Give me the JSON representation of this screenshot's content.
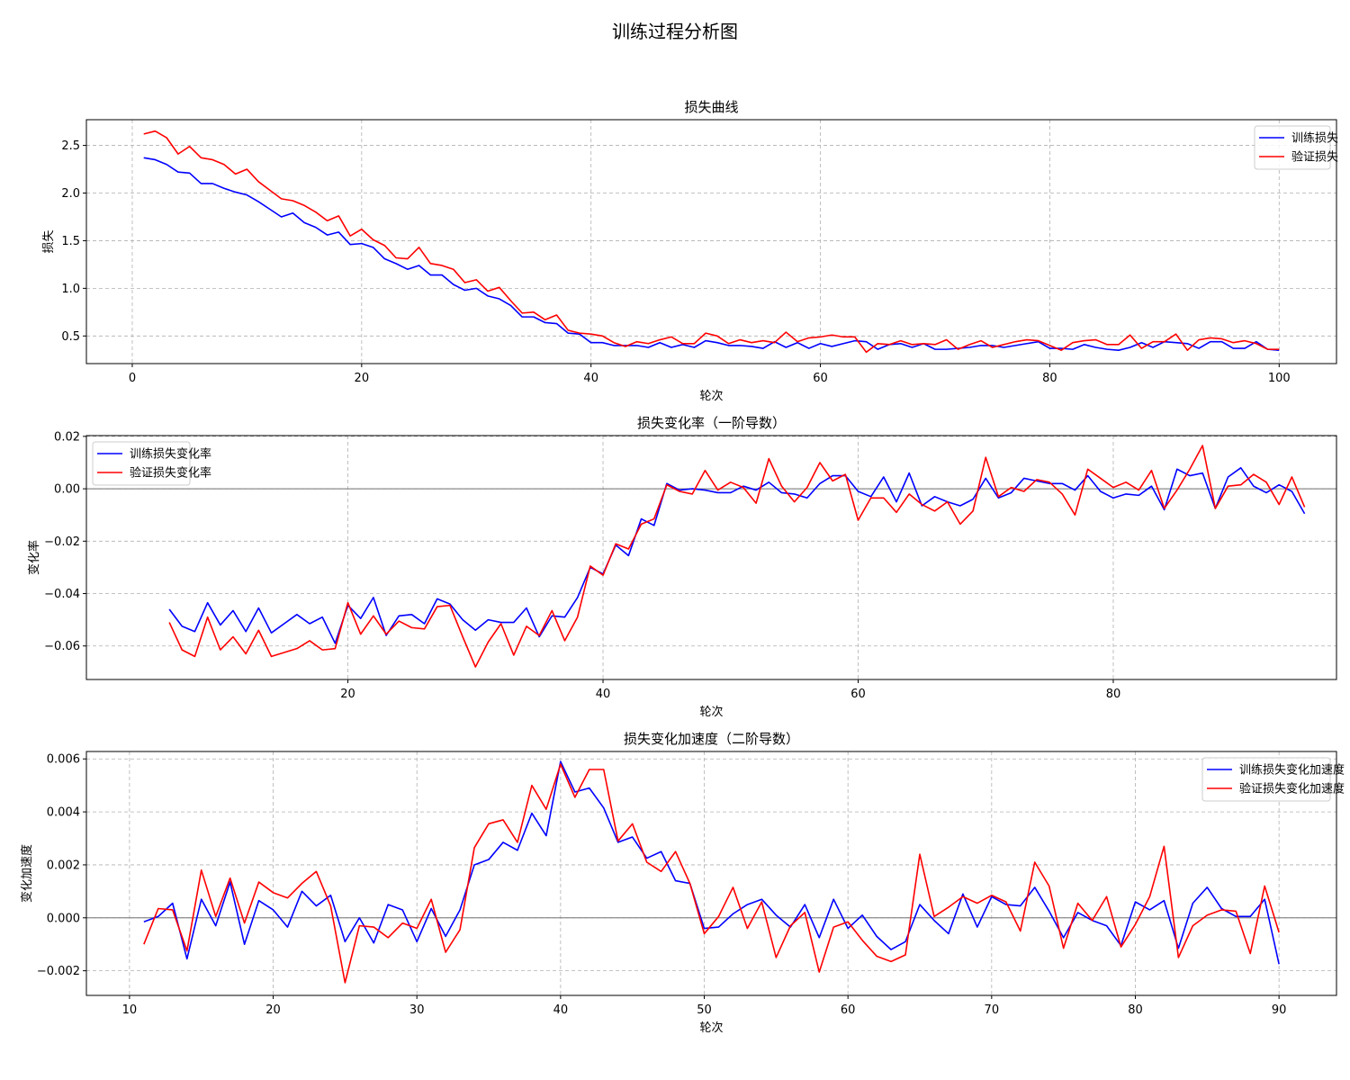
{
  "figure": {
    "suptitle": "训练过程分析图"
  },
  "colors": {
    "series1": "#0000ff",
    "series2": "#ff0000",
    "grid": "#b0b0b0",
    "zero_line": "#808080"
  },
  "chart_data": [
    {
      "type": "line",
      "title": "损失曲线",
      "xlabel": "轮次",
      "ylabel": "损失",
      "xlim": [
        -4,
        105
      ],
      "ylim": [
        0.21,
        2.77
      ],
      "xticks": [
        0,
        20,
        40,
        60,
        80,
        100
      ],
      "yticks": [
        0.5,
        1.0,
        1.5,
        2.0,
        2.5
      ],
      "ytick_decimals": 1,
      "grid": true,
      "zero_line": false,
      "legend": "top-right",
      "series": [
        {
          "name": "训练损失",
          "color": "#0000ff",
          "x_start": 1,
          "values": [
            2.37,
            2.35,
            2.3,
            2.22,
            2.21,
            2.1,
            2.1,
            2.05,
            2.01,
            1.98,
            1.91,
            1.83,
            1.75,
            1.79,
            1.69,
            1.64,
            1.56,
            1.59,
            1.46,
            1.47,
            1.43,
            1.31,
            1.26,
            1.2,
            1.24,
            1.14,
            1.14,
            1.04,
            0.98,
            1.0,
            0.92,
            0.89,
            0.82,
            0.7,
            0.7,
            0.64,
            0.63,
            0.53,
            0.52,
            0.43,
            0.43,
            0.4,
            0.4,
            0.4,
            0.38,
            0.43,
            0.38,
            0.41,
            0.38,
            0.45,
            0.43,
            0.4,
            0.4,
            0.39,
            0.37,
            0.44,
            0.38,
            0.43,
            0.37,
            0.42,
            0.39,
            0.42,
            0.45,
            0.44,
            0.36,
            0.41,
            0.42,
            0.38,
            0.42,
            0.36,
            0.36,
            0.37,
            0.38,
            0.4,
            0.4,
            0.38,
            0.4,
            0.42,
            0.44,
            0.37,
            0.37,
            0.36,
            0.41,
            0.38,
            0.36,
            0.35,
            0.38,
            0.43,
            0.38,
            0.44,
            0.43,
            0.42,
            0.37,
            0.44,
            0.44,
            0.37,
            0.37,
            0.44,
            0.36,
            0.35
          ]
        },
        {
          "name": "验证损失",
          "color": "#ff0000",
          "x_start": 1,
          "values": [
            2.62,
            2.65,
            2.58,
            2.41,
            2.49,
            2.37,
            2.35,
            2.3,
            2.2,
            2.25,
            2.12,
            2.03,
            1.94,
            1.92,
            1.87,
            1.8,
            1.71,
            1.76,
            1.55,
            1.62,
            1.51,
            1.45,
            1.32,
            1.31,
            1.43,
            1.26,
            1.24,
            1.2,
            1.06,
            1.09,
            0.97,
            1.01,
            0.87,
            0.74,
            0.75,
            0.67,
            0.72,
            0.56,
            0.53,
            0.52,
            0.5,
            0.43,
            0.39,
            0.44,
            0.42,
            0.46,
            0.49,
            0.42,
            0.42,
            0.53,
            0.5,
            0.42,
            0.46,
            0.43,
            0.45,
            0.43,
            0.54,
            0.44,
            0.48,
            0.49,
            0.51,
            0.49,
            0.49,
            0.33,
            0.42,
            0.41,
            0.45,
            0.41,
            0.42,
            0.41,
            0.46,
            0.36,
            0.41,
            0.45,
            0.38,
            0.41,
            0.44,
            0.46,
            0.45,
            0.4,
            0.35,
            0.43,
            0.45,
            0.46,
            0.41,
            0.41,
            0.51,
            0.37,
            0.44,
            0.44,
            0.52,
            0.35,
            0.46,
            0.48,
            0.47,
            0.43,
            0.45,
            0.42,
            0.36,
            0.36
          ]
        }
      ]
    },
    {
      "type": "line",
      "title": "损失变化率（一阶导数）",
      "xlabel": "轮次",
      "ylabel": "变化率",
      "xlim": [
        -0.5,
        97.5
      ],
      "ylim": [
        -0.0728,
        0.0203
      ],
      "xticks": [
        20,
        40,
        60,
        80
      ],
      "yticks": [
        -0.06,
        -0.04,
        -0.02,
        0.0,
        0.02
      ],
      "ytick_decimals": 2,
      "grid": true,
      "zero_line": true,
      "legend": "top-left",
      "series": [
        {
          "name": "训练损失变化率",
          "color": "#0000ff",
          "x_start": 6,
          "values": [
            -0.046,
            -0.0525,
            -0.0545,
            -0.0435,
            -0.052,
            -0.0465,
            -0.0545,
            -0.0455,
            -0.055,
            -0.0515,
            -0.048,
            -0.0515,
            -0.049,
            -0.059,
            -0.0445,
            -0.0495,
            -0.0415,
            -0.056,
            -0.0485,
            -0.048,
            -0.0515,
            -0.042,
            -0.044,
            -0.05,
            -0.054,
            -0.05,
            -0.051,
            -0.051,
            -0.0455,
            -0.0565,
            -0.0485,
            -0.049,
            -0.0415,
            -0.03,
            -0.0325,
            -0.0215,
            -0.0255,
            -0.0115,
            -0.014,
            0.002,
            -0.0005,
            0.0,
            -0.0005,
            -0.0015,
            -0.0015,
            0.001,
            -0.0005,
            0.0025,
            -0.0015,
            -0.002,
            -0.0035,
            0.002,
            0.005,
            0.005,
            -0.001,
            -0.003,
            0.0045,
            -0.005,
            0.006,
            -0.0065,
            -0.003,
            -0.005,
            -0.0065,
            -0.004,
            0.004,
            -0.0035,
            -0.0015,
            0.004,
            0.003,
            0.002,
            0.002,
            -0.0005,
            0.005,
            -0.001,
            -0.0035,
            -0.002,
            -0.0025,
            0.001,
            -0.008,
            0.0075,
            0.005,
            0.006,
            -0.0075,
            0.0045,
            0.008,
            0.001,
            -0.0015,
            0.0015,
            -0.001,
            -0.0095
          ]
        },
        {
          "name": "验证损失变化率",
          "color": "#ff0000",
          "x_start": 6,
          "values": [
            -0.051,
            -0.0615,
            -0.064,
            -0.049,
            -0.0615,
            -0.0565,
            -0.063,
            -0.054,
            -0.064,
            -0.0625,
            -0.061,
            -0.058,
            -0.0615,
            -0.061,
            -0.0435,
            -0.0555,
            -0.0485,
            -0.0555,
            -0.0505,
            -0.053,
            -0.0535,
            -0.045,
            -0.0445,
            -0.0565,
            -0.068,
            -0.0585,
            -0.0515,
            -0.0635,
            -0.0525,
            -0.056,
            -0.0465,
            -0.058,
            -0.049,
            -0.0295,
            -0.033,
            -0.021,
            -0.023,
            -0.0135,
            -0.0115,
            0.0015,
            -0.001,
            -0.002,
            0.007,
            -0.0005,
            0.0025,
            0.0005,
            -0.0055,
            0.0115,
            0.001,
            -0.005,
            0.0005,
            0.01,
            0.003,
            0.0055,
            -0.012,
            -0.0035,
            -0.0035,
            -0.009,
            -0.002,
            -0.006,
            -0.0085,
            -0.005,
            -0.0135,
            -0.0085,
            0.012,
            -0.003,
            0.0005,
            -0.001,
            0.0035,
            0.0025,
            -0.002,
            -0.01,
            0.0075,
            0.004,
            0.0005,
            0.0025,
            -0.0005,
            0.007,
            -0.0075,
            -0.0005,
            0.0075,
            0.0165,
            -0.0075,
            0.001,
            0.0015,
            0.0055,
            0.0025,
            -0.006,
            0.0045,
            -0.007
          ]
        }
      ]
    },
    {
      "type": "line",
      "title": "损失变化加速度（二阶导数）",
      "xlabel": "轮次",
      "ylabel": "变化加速度",
      "xlim": [
        7.0,
        94.0
      ],
      "ylim": [
        -0.00293,
        0.00628
      ],
      "xticks": [
        10,
        20,
        30,
        40,
        50,
        60,
        70,
        80,
        90
      ],
      "yticks": [
        -0.002,
        0.0,
        0.002,
        0.004,
        0.006
      ],
      "ytick_decimals": 3,
      "grid": true,
      "zero_line": true,
      "legend": "top-right",
      "series": [
        {
          "name": "训练损失变化加速度",
          "color": "#0000ff",
          "x_start": 11,
          "values": [
            -0.00015,
            5e-05,
            0.00055,
            -0.00155,
            0.0007,
            -0.0003,
            0.00135,
            -0.001,
            0.00065,
            0.0003,
            -0.00035,
            0.001,
            0.00045,
            0.00085,
            -0.0009,
            0.0,
            -0.00095,
            0.0005,
            0.0003,
            -0.0009,
            0.00035,
            -0.0007,
            0.0003,
            0.002,
            0.0022,
            0.00285,
            0.00255,
            0.00395,
            0.0031,
            0.0059,
            0.00475,
            0.0049,
            0.00415,
            0.00285,
            0.00305,
            0.00225,
            0.0025,
            0.0014,
            0.0013,
            -0.0004,
            -0.00035,
            0.00015,
            0.0005,
            0.0007,
            0.0001,
            -0.00035,
            0.0005,
            -0.00075,
            0.0007,
            -0.0004,
            0.0001,
            -0.0007,
            -0.0012,
            -0.0009,
            0.0005,
            -0.0001,
            -0.0006,
            0.0009,
            -0.00035,
            0.0008,
            0.0005,
            0.00045,
            0.00115,
            0.00025,
            -0.00075,
            0.0002,
            -0.0001,
            -0.0003,
            -0.00105,
            0.0006,
            0.0003,
            0.00065,
            -0.00115,
            0.00055,
            0.00115,
            0.00035,
            5e-05,
            5e-05,
            0.0007,
            -0.00175
          ]
        },
        {
          "name": "验证损失变化加速度",
          "color": "#ff0000",
          "x_start": 11,
          "values": [
            -0.001,
            0.00035,
            0.0003,
            -0.00125,
            0.0018,
            5e-05,
            0.0015,
            -0.0002,
            0.00135,
            0.00095,
            0.00075,
            0.0013,
            0.00175,
            0.00045,
            -0.00245,
            -0.0003,
            -0.00035,
            -0.00075,
            -0.0002,
            -0.0004,
            0.0007,
            -0.0013,
            -0.00045,
            0.00265,
            0.00355,
            0.0037,
            0.00285,
            0.005,
            0.0041,
            0.0058,
            0.00455,
            0.0056,
            0.0056,
            0.0029,
            0.00355,
            0.0021,
            0.00175,
            0.0025,
            0.0013,
            -0.0006,
            5e-05,
            0.00115,
            -0.0004,
            0.0006,
            -0.0015,
            -0.0003,
            0.0002,
            -0.00205,
            -0.00035,
            -0.00015,
            -0.00085,
            -0.00145,
            -0.00165,
            -0.0014,
            0.0024,
            5e-05,
            0.0004,
            0.0008,
            0.00055,
            0.00085,
            0.0006,
            -0.0005,
            0.0021,
            0.0012,
            -0.00115,
            0.00055,
            -0.0001,
            0.0008,
            -0.0011,
            -0.00025,
            0.0008,
            0.0027,
            -0.0015,
            -0.0003,
            0.0001,
            0.0003,
            0.00025,
            -0.00135,
            0.0012,
            -0.00055
          ]
        }
      ]
    }
  ]
}
